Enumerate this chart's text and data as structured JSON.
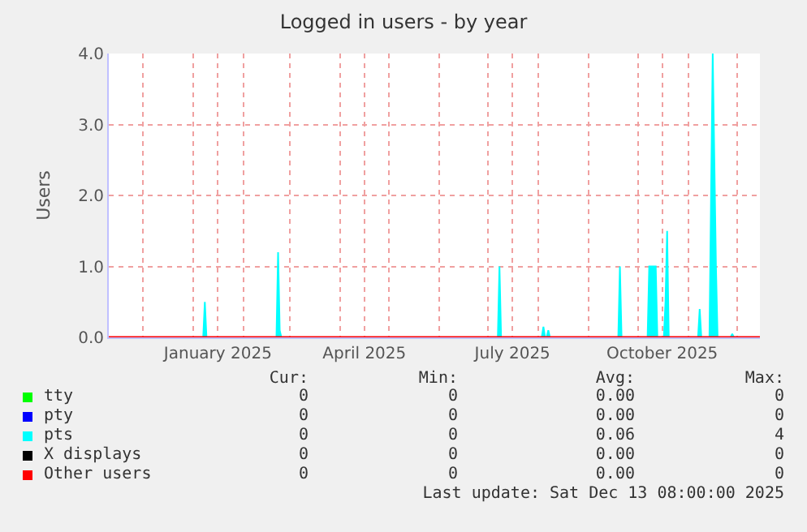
{
  "chart_data": {
    "type": "area",
    "title": "Logged in users - by year",
    "ylabel": "Users",
    "xlim": [
      "2024-11-10",
      "2025-12-15"
    ],
    "xticks": [
      {
        "value": "2024-12-01",
        "label": null
      },
      {
        "value": "2025-01-01",
        "label": null
      },
      {
        "value": "2025-01-16",
        "label": "January 2025"
      },
      {
        "value": "2025-02-01",
        "label": null
      },
      {
        "value": "2025-03-01",
        "label": null
      },
      {
        "value": "2025-04-01",
        "label": null
      },
      {
        "value": "2025-04-16",
        "label": "April 2025"
      },
      {
        "value": "2025-05-01",
        "label": null
      },
      {
        "value": "2025-06-01",
        "label": null
      },
      {
        "value": "2025-07-01",
        "label": null
      },
      {
        "value": "2025-07-16",
        "label": "July 2025"
      },
      {
        "value": "2025-08-01",
        "label": null
      },
      {
        "value": "2025-09-01",
        "label": null
      },
      {
        "value": "2025-10-01",
        "label": null
      },
      {
        "value": "2025-10-16",
        "label": "October 2025"
      },
      {
        "value": "2025-11-01",
        "label": null
      },
      {
        "value": "2025-12-01",
        "label": null
      }
    ],
    "ylim": [
      0,
      4
    ],
    "yticks": [
      {
        "value": 0,
        "label": "0.0"
      },
      {
        "value": 1,
        "label": "1.0"
      },
      {
        "value": 2,
        "label": "2.0"
      },
      {
        "value": 3,
        "label": "3.0"
      },
      {
        "value": 4,
        "label": "4.0"
      }
    ],
    "grid": true,
    "legend": "bottom",
    "series": [
      {
        "name": "tty",
        "type": "line",
        "color": "#00ff00"
      },
      {
        "name": "pty",
        "type": "line",
        "color": "#0000ff"
      },
      {
        "name": "pts",
        "color": "#00ffff",
        "x": [
          "2024-11-10",
          "2025-01-07",
          "2025-01-08",
          "2025-01-09",
          "2025-02-21",
          "2025-02-22",
          "2025-02-23",
          "2025-02-24",
          "2025-07-07",
          "2025-07-08",
          "2025-07-09",
          "2025-08-03",
          "2025-08-04",
          "2025-08-05",
          "2025-08-06",
          "2025-08-07",
          "2025-08-08",
          "2025-09-19",
          "2025-09-20",
          "2025-09-21",
          "2025-10-07",
          "2025-10-08",
          "2025-10-12",
          "2025-10-13",
          "2025-10-17",
          "2025-10-18",
          "2025-10-19",
          "2025-10-20",
          "2025-11-07",
          "2025-11-08",
          "2025-11-09",
          "2025-11-14",
          "2025-11-16",
          "2025-11-18",
          "2025-11-19",
          "2025-11-27",
          "2025-11-28",
          "2025-11-29",
          "2025-12-13"
        ],
        "values": [
          0,
          0,
          0.5,
          0,
          0,
          1.2,
          0.1,
          0,
          0,
          1.0,
          0,
          0,
          0.15,
          0,
          0,
          0.1,
          0,
          0,
          1.0,
          0,
          0,
          1.0,
          1.0,
          0,
          0,
          0.5,
          1.5,
          0,
          0,
          0.4,
          0,
          0,
          4.0,
          1.0,
          0,
          0,
          0.05,
          0,
          0
        ]
      },
      {
        "name": "X displays",
        "type": "line",
        "color": "#000000"
      },
      {
        "name": "Other users",
        "type": "line",
        "color": "#ff0000",
        "x": [
          "2024-11-10",
          "2025-12-15"
        ],
        "values": [
          0,
          0
        ]
      }
    ],
    "annotations": [
      "Cur:",
      "Min:",
      "Avg:",
      "Max:",
      "0",
      "0",
      "0.00",
      "0",
      "0",
      "0",
      "0.00",
      "0",
      "0",
      "0",
      "0.06",
      "4",
      "0",
      "0",
      "0.00",
      "0",
      "0",
      "0",
      "0.00",
      "0",
      "Last update: Sat Dec 13 08:00:00 2025"
    ]
  }
}
